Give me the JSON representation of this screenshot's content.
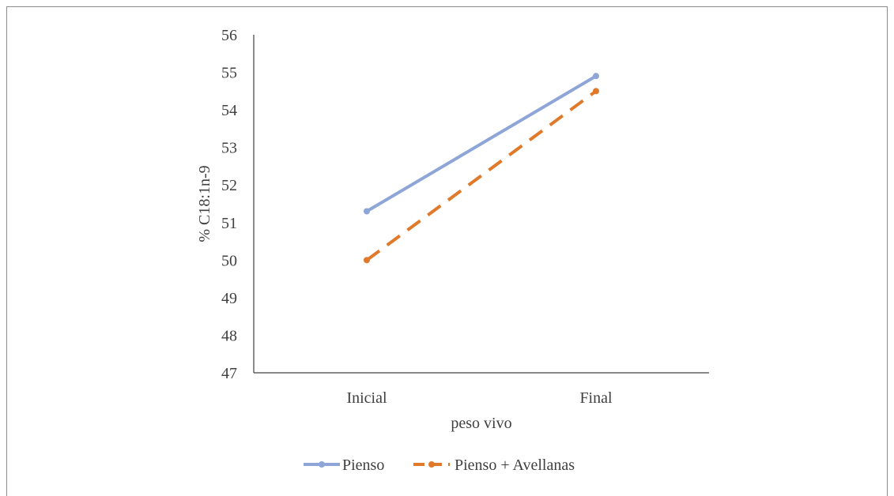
{
  "chart_data": {
    "type": "line",
    "title": "",
    "xlabel": "peso vivo",
    "ylabel": "% C18:1n-9",
    "categories": [
      "Inicial",
      "Final"
    ],
    "ylim": [
      47,
      56
    ],
    "yticks": [
      "47",
      "48",
      "49",
      "50",
      "51",
      "52",
      "53",
      "54",
      "55",
      "56"
    ],
    "grid": false,
    "legend_position": "bottom",
    "series": [
      {
        "name": "Pienso",
        "values": [
          51.3,
          54.9
        ],
        "color": "#8EA5D8",
        "line_style": "solid"
      },
      {
        "name": "Pienso + Avellanas",
        "values": [
          50.0,
          54.5
        ],
        "color": "#E07A2A",
        "line_style": "dashed"
      }
    ]
  }
}
